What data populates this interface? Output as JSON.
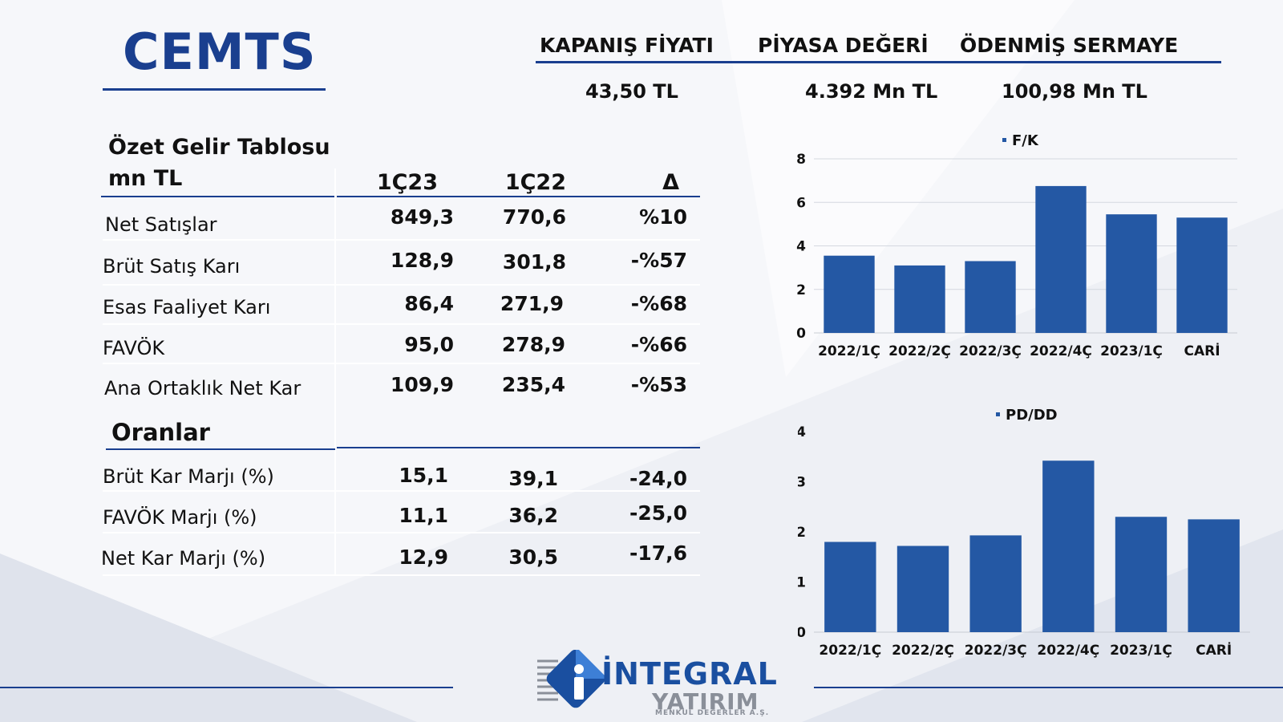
{
  "header": {
    "ticker": "CEMTS",
    "metrics": [
      {
        "label": "KAPANIŞ FİYATI",
        "value": "43,50 TL"
      },
      {
        "label": "PİYASA DEĞERİ",
        "value": "4.392 Mn TL"
      },
      {
        "label": "ÖDENMİŞ SERMAYE",
        "value": "100,98 Mn TL"
      }
    ]
  },
  "income": {
    "title": "Özet Gelir Tablosu",
    "unit": "mn TL",
    "columns": [
      "1Ç23",
      "1Ç22",
      "Δ"
    ],
    "rows": [
      {
        "label": "Net Satışlar",
        "c1": "849,3",
        "c2": "770,6",
        "c3": "%10"
      },
      {
        "label": "Brüt Satış Karı",
        "c1": "128,9",
        "c2": "301,8",
        "c3": "-%57"
      },
      {
        "label": "Esas Faaliyet Karı",
        "c1": "86,4",
        "c2": "271,9",
        "c3": "-%68"
      },
      {
        "label": "FAVÖK",
        "c1": "95,0",
        "c2": "278,9",
        "c3": "-%66"
      },
      {
        "label": "Ana Ortaklık Net Kar",
        "c1": "109,9",
        "c2": "235,4",
        "c3": "-%53"
      }
    ]
  },
  "ratios": {
    "title": "Oranlar",
    "rows": [
      {
        "label": "Brüt Kar Marjı (%)",
        "c1": "15,1",
        "c2": "39,1",
        "c3": "-24,0"
      },
      {
        "label": "FAVÖK Marjı (%)",
        "c1": "11,1",
        "c2": "36,2",
        "c3": "-25,0"
      },
      {
        "label": "Net Kar Marjı (%)",
        "c1": "12,9",
        "c2": "30,5",
        "c3": "-17,6"
      }
    ]
  },
  "logo": {
    "name": "İNTEGRAL",
    "sub": "YATIRIM",
    "tagline": "MENKUL DEĞERLER A.Ş."
  },
  "colors": {
    "accent": "#1a3f8f",
    "bar": "#2458a4"
  },
  "chart_data": [
    {
      "type": "bar",
      "title": "",
      "legend": "F/K",
      "categories": [
        "2022/1Ç",
        "2022/2Ç",
        "2022/3Ç",
        "2022/4Ç",
        "2023/1Ç",
        "CARİ"
      ],
      "values": [
        3.55,
        3.1,
        3.3,
        6.75,
        5.45,
        5.3
      ],
      "yticks": [
        0,
        2,
        4,
        6,
        8
      ],
      "ylim": [
        0,
        8
      ],
      "grid": true
    },
    {
      "type": "bar",
      "title": "",
      "legend": "PD/DD",
      "categories": [
        "2022/1Ç",
        "2022/2Ç",
        "2022/3Ç",
        "2022/4Ç",
        "2023/1Ç",
        "CARİ"
      ],
      "values": [
        1.8,
        1.72,
        1.93,
        3.42,
        2.3,
        2.25
      ],
      "yticks": [
        0,
        1,
        2,
        3,
        4
      ],
      "ylim": [
        0,
        4
      ],
      "grid": false
    }
  ]
}
